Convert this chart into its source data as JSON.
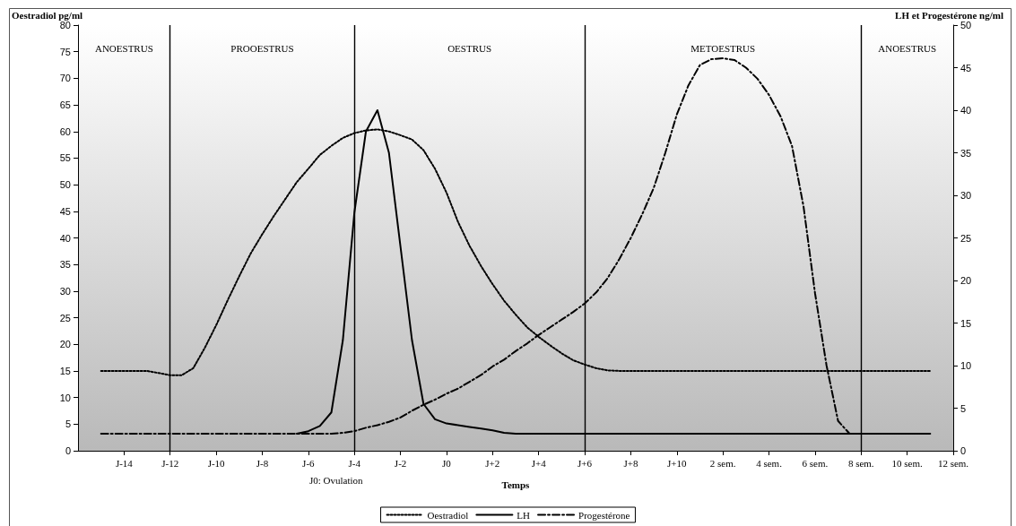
{
  "chart_data": {
    "type": "line",
    "xlabel": "Temps",
    "ylabel": "Oestradiol pg/ml",
    "y2label": "LH et Progestérone ng/ml",
    "categories": [
      null,
      null,
      null,
      null,
      "J-14",
      null,
      null,
      null,
      "J-12",
      null,
      null,
      null,
      "J-10",
      null,
      null,
      null,
      "J-8",
      null,
      null,
      null,
      "J-6",
      null,
      null,
      null,
      "J-4",
      null,
      null,
      null,
      "J-2",
      null,
      null,
      null,
      "J0",
      null,
      null,
      null,
      "J+2",
      null,
      null,
      null,
      "J+4",
      null,
      null,
      null,
      "J+6",
      null,
      null,
      null,
      "J+8",
      null,
      null,
      null,
      "J+10",
      null,
      null,
      null,
      "2 sem.",
      null,
      null,
      null,
      "4 sem.",
      null,
      null,
      null,
      "6 sem.",
      null,
      null,
      null,
      "8 sem.",
      null,
      null,
      null,
      "10 sem.",
      null,
      null,
      null,
      "12 sem."
    ],
    "ylim": [
      0,
      80
    ],
    "yticks": [
      0,
      5,
      10,
      15,
      20,
      25,
      30,
      35,
      40,
      45,
      50,
      55,
      60,
      65,
      70,
      75,
      80
    ],
    "y2lim": [
      0,
      50
    ],
    "y2ticks": [
      0,
      5,
      10,
      15,
      20,
      25,
      30,
      35,
      40,
      45,
      50
    ],
    "series": [
      {
        "name": "Oestradiol",
        "color": "#000000",
        "line_style": "dotted",
        "values": [
          null,
          null,
          15,
          15,
          15,
          15,
          15,
          14.6,
          14.2,
          14.2,
          15.5,
          19.3,
          23.6,
          28.3,
          32.8,
          37.1,
          40.7,
          44.1,
          47.3,
          50.5,
          53,
          55.6,
          57.3,
          58.8,
          59.7,
          60.2,
          60.4,
          60,
          59.3,
          58.5,
          56.5,
          53,
          48.5,
          43,
          38.5,
          34.7,
          31.3,
          28.2,
          25.6,
          23.2,
          21.4,
          19.8,
          18.3,
          17,
          16.2,
          15.5,
          15.1,
          15,
          15,
          15,
          15,
          15,
          15,
          15,
          15,
          15,
          15,
          15,
          15,
          15,
          15,
          15,
          15,
          15,
          15,
          15,
          15,
          15,
          15,
          15,
          15,
          15,
          15,
          15,
          15,
          null,
          null
        ]
      },
      {
        "name": "LH",
        "color": "#000000",
        "line_style": "solid",
        "axis": "y2",
        "values": [
          null,
          null,
          null,
          null,
          null,
          null,
          null,
          null,
          null,
          null,
          null,
          null,
          null,
          null,
          null,
          null,
          null,
          null,
          null,
          2,
          2.3,
          2.9,
          4.5,
          13,
          28,
          37.5,
          40,
          35,
          24,
          13,
          5.5,
          3.7,
          3.2,
          3,
          2.8,
          2.6,
          2.4,
          2.1,
          2,
          2,
          2,
          2,
          2,
          2,
          2,
          2,
          2,
          2,
          2,
          2,
          2,
          2,
          2,
          2,
          2,
          2,
          2,
          2,
          2,
          2,
          2,
          2,
          2,
          2,
          2,
          2,
          2,
          2,
          2,
          2,
          2,
          2,
          2,
          2,
          2,
          null,
          null
        ]
      },
      {
        "name": "Progestérone",
        "color": "#000000",
        "line_style": "dashdot",
        "axis": "y2",
        "values": [
          null,
          null,
          2,
          2,
          2,
          2,
          2,
          2,
          2,
          2,
          2,
          2,
          2,
          2,
          2,
          2,
          2,
          2,
          2,
          2,
          2,
          2,
          2,
          2.1,
          2.3,
          2.7,
          3,
          3.4,
          3.9,
          4.7,
          5.4,
          6,
          6.7,
          7.3,
          8.1,
          8.9,
          9.9,
          10.7,
          11.7,
          12.6,
          13.6,
          14.5,
          15.4,
          16.3,
          17.3,
          18.6,
          20.3,
          22.5,
          25,
          27.8,
          30.9,
          35,
          39.5,
          42.9,
          45.3,
          46,
          46.1,
          45.9,
          45,
          43.7,
          41.8,
          39.3,
          35.8,
          28.7,
          18.5,
          10,
          3.5,
          2,
          null,
          null,
          null,
          null,
          null,
          null,
          null,
          null,
          null
        ]
      }
    ],
    "ref_lines": [
      {
        "axis": "x",
        "value": "J-12"
      },
      {
        "axis": "x",
        "value": "J-4"
      },
      {
        "axis": "x",
        "value": "J+6"
      },
      {
        "axis": "x",
        "value": "8 sem."
      }
    ],
    "annotations": [
      "ANOESTRUS",
      "PROOESTRUS",
      "OESTRUS",
      "METOESTRUS",
      "ANOESTRUS",
      "J0: Ovulation"
    ],
    "grid": false,
    "marker": "none",
    "legend": "bottom"
  }
}
